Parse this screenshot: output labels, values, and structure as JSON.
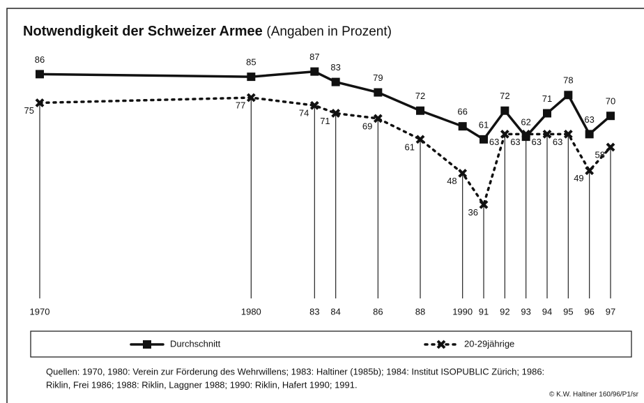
{
  "chart_data": {
    "type": "line",
    "title": "Notwendigkeit der Schweizer Armee",
    "subtitle": "(Angaben in Prozent)",
    "x": [
      1970,
      1980,
      1983,
      1984,
      1986,
      1988,
      1990,
      1991,
      1992,
      1993,
      1994,
      1995,
      1996,
      1997
    ],
    "xlim": [
      1970,
      1997
    ],
    "xticks": [
      1970,
      1980,
      {
        "value": 1983,
        "label": "83"
      },
      {
        "value": 1984,
        "label": "84"
      },
      {
        "value": 1986,
        "label": "86"
      },
      {
        "value": 1988,
        "label": "88"
      },
      1990,
      {
        "value": 1991,
        "label": "91"
      },
      {
        "value": 1992,
        "label": "92"
      },
      {
        "value": 1993,
        "label": "93"
      },
      {
        "value": 1994,
        "label": "94"
      },
      {
        "value": 1995,
        "label": "95"
      },
      {
        "value": 1996,
        "label": "96"
      },
      {
        "value": 1997,
        "label": "97"
      }
    ],
    "ylim": [
      0,
      100
    ],
    "series": [
      {
        "name": "Durchschnitt",
        "color": "#111111",
        "line_style": "solid",
        "marker": "square",
        "values": [
          86,
          85,
          87,
          83,
          79,
          72,
          66,
          61,
          72,
          62,
          71,
          78,
          63,
          70
        ]
      },
      {
        "name": "20-29jährige",
        "color": "#111111",
        "line_style": "dotted",
        "marker": "x",
        "values": [
          75,
          77,
          74,
          71,
          69,
          61,
          48,
          36,
          63,
          63,
          63,
          63,
          49,
          58
        ]
      }
    ],
    "sources": [
      "Quellen: 1970, 1980: Verein zur Förderung des Wehrwillens; 1983: Haltiner (1985b); 1984: Institut ISOPUBLIC Zürich; 1986:",
      "Riklin, Frei 1986; 1988: Riklin, Laggner 1988; 1990: Riklin, Hafert 1990; 1991."
    ],
    "credit": "© K.W. Haltiner 160/96/P1/sr"
  }
}
